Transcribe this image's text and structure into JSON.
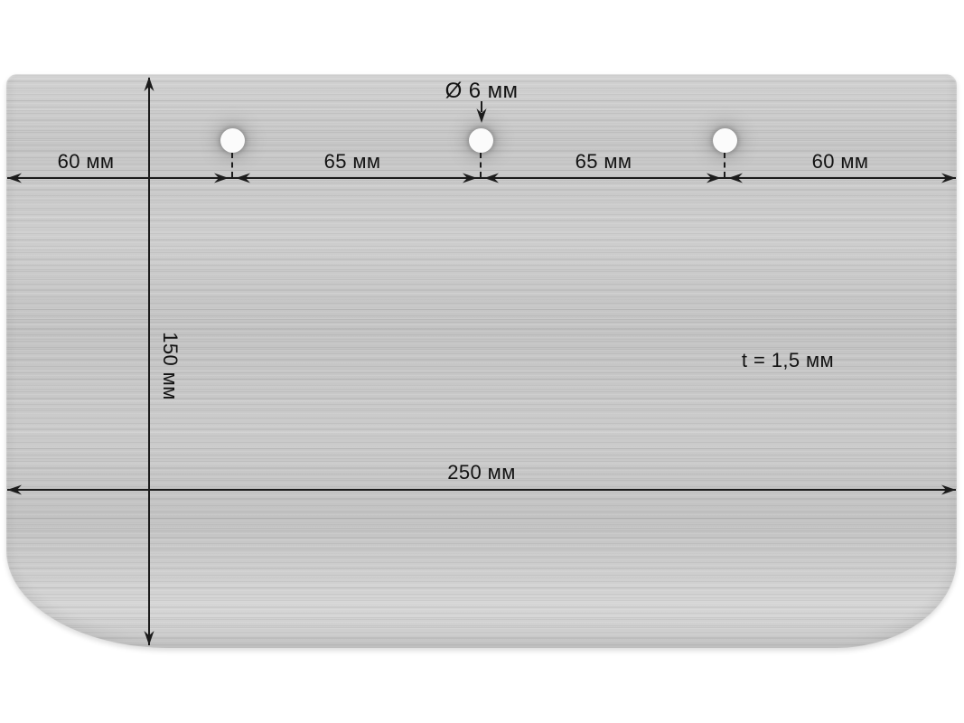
{
  "title": "metal-plate-technical-drawing",
  "colors": {
    "background": "#ffffff",
    "dimension_line": "#1c1c1c",
    "plate_base": "#c9c9c9",
    "hole_fill": "#fbfbfb"
  },
  "plate": {
    "material": "brushed-metal",
    "holes_count": 3
  },
  "dimensions": {
    "top_segments": [
      {
        "label": "60 мм"
      },
      {
        "label": "65 мм"
      },
      {
        "label": "65 мм"
      },
      {
        "label": "60 мм"
      }
    ],
    "height_label": "150 мм",
    "width_label": "250 мм",
    "thickness_label": "t = 1,5 мм",
    "hole_diameter_label": "Ø 6 мм"
  }
}
